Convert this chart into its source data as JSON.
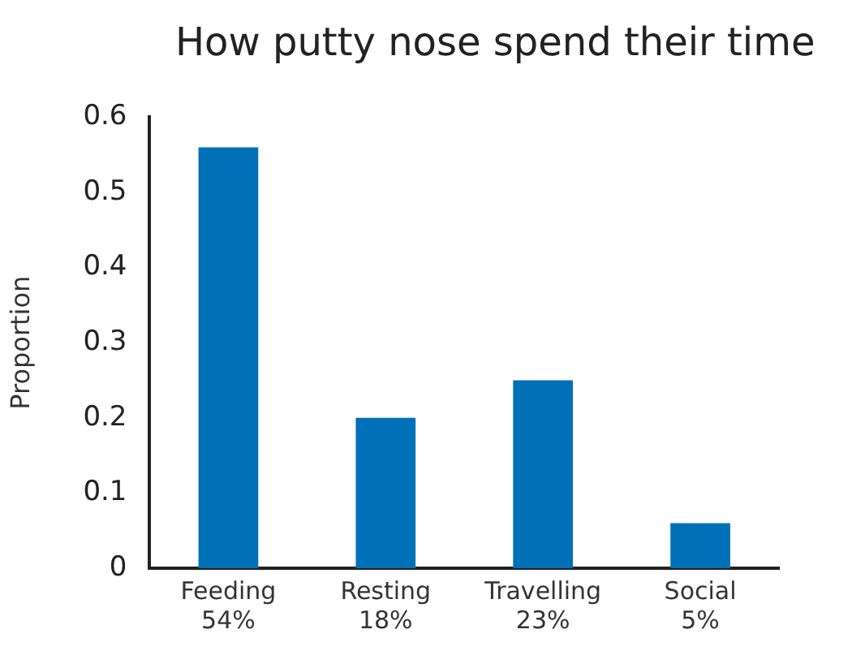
{
  "chart_data": {
    "type": "bar",
    "title": "How putty nose spend their time",
    "ylabel": "Proportion",
    "categories": [
      "Feeding\n54%",
      "Resting\n18%",
      "Travelling\n23%",
      "Social\n5%"
    ],
    "values": [
      0.56,
      0.2,
      0.25,
      0.06
    ],
    "color": "#0070b8",
    "ylim": [
      0,
      0.6
    ],
    "yticks": [
      0,
      0.1,
      0.2,
      0.3,
      0.4,
      0.5,
      0.6
    ],
    "grid": false,
    "legend": false
  }
}
